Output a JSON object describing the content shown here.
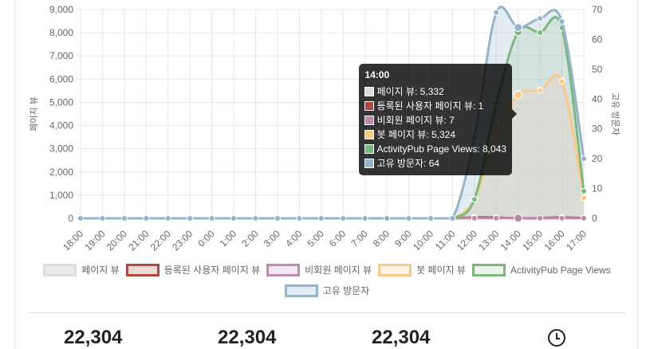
{
  "chart_data": {
    "type": "line",
    "categories": [
      "18:00",
      "19:00",
      "20:00",
      "21:00",
      "22:00",
      "23:00",
      "0:00",
      "1:00",
      "2:00",
      "3:00",
      "4:00",
      "5:00",
      "6:00",
      "7:00",
      "8:00",
      "9:00",
      "10:00",
      "11:00",
      "12:00",
      "13:00",
      "14:00",
      "15:00",
      "16:00",
      "17:00"
    ],
    "ylabel": "페이지 뷰",
    "y2label": "고유 방문자",
    "ylim": [
      0,
      9000
    ],
    "y2lim": [
      0,
      70
    ],
    "yticks": [
      "0",
      "1,000",
      "2,000",
      "3,000",
      "4,000",
      "5,000",
      "6,000",
      "7,000",
      "8,000",
      "9,000"
    ],
    "y2ticks": [
      "0",
      "10",
      "20",
      "30",
      "40",
      "50",
      "60",
      "70"
    ],
    "grid": true,
    "legend_position": "bottom",
    "series": [
      {
        "name": "페이지 뷰",
        "axis": "left",
        "color": "#dddddd",
        "fill": "rgba(220,220,220,0.6)",
        "values": [
          0,
          0,
          0,
          0,
          0,
          0,
          0,
          0,
          0,
          0,
          0,
          0,
          0,
          0,
          0,
          0,
          0,
          0,
          860,
          3640,
          5332,
          5530,
          5950,
          890
        ]
      },
      {
        "name": "등록된 사용자 페이지 뷰",
        "axis": "left",
        "color": "#ab4a43",
        "fill": "rgba(171,74,67,0.2)",
        "values": [
          0,
          0,
          0,
          0,
          0,
          0,
          0,
          0,
          0,
          0,
          0,
          0,
          0,
          0,
          0,
          0,
          0,
          0,
          40,
          30,
          1,
          10,
          40,
          10
        ]
      },
      {
        "name": "비회원 페이지 뷰",
        "axis": "left",
        "color": "#ba8baf",
        "fill": "rgba(186,139,175,0.2)",
        "values": [
          0,
          0,
          0,
          0,
          0,
          0,
          0,
          0,
          0,
          0,
          0,
          0,
          0,
          0,
          0,
          0,
          0,
          0,
          10,
          8,
          7,
          8,
          10,
          5
        ]
      },
      {
        "name": "봇 페이지 뷰",
        "axis": "left",
        "color": "#f7ca88",
        "fill": "rgba(247,202,136,0.2)",
        "values": [
          0,
          0,
          0,
          0,
          0,
          0,
          0,
          0,
          0,
          0,
          0,
          0,
          0,
          0,
          0,
          0,
          0,
          0,
          820,
          3600,
          5324,
          5510,
          5900,
          880
        ]
      },
      {
        "name": "ActivityPub Page Views",
        "axis": "left",
        "color": "#7cb87c",
        "fill": "rgba(124,184,124,0.15)",
        "values": [
          0,
          0,
          0,
          0,
          0,
          0,
          0,
          0,
          0,
          0,
          0,
          0,
          0,
          0,
          0,
          0,
          0,
          0,
          820,
          4950,
          8043,
          8010,
          8210,
          1170
        ]
      },
      {
        "name": "고유 방문자",
        "axis": "right",
        "color": "#94b4cc",
        "fill": "rgba(148,180,204,0.25)",
        "values": [
          0,
          0,
          0,
          0,
          0,
          0,
          0,
          0,
          0,
          0,
          0,
          0,
          0,
          0,
          0,
          0,
          0,
          0,
          27,
          69,
          64,
          67,
          66,
          20
        ]
      }
    ],
    "tooltip": {
      "title": "14:00",
      "rows": [
        "페이지 뷰: 5,332",
        "등록된 사용자 페이지 뷰: 1",
        "비회원 페이지 뷰: 7",
        "봇 페이지 뷰: 5,324",
        "ActivityPub Page Views: 8,043",
        "고유 방문자: 64"
      ]
    }
  },
  "stats": [
    "22,304",
    "22,304",
    "22,304"
  ],
  "clock_icon": "clock-icon"
}
